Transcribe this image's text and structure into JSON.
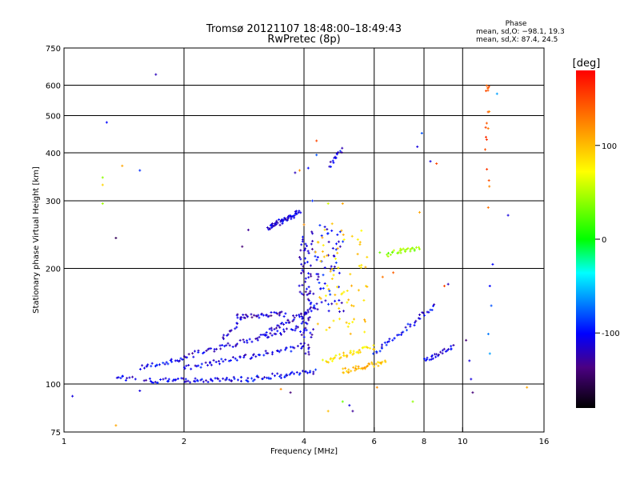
{
  "chart_data": {
    "type": "scatter",
    "title": "Tromsø 20121107 18:48:00–18:49:43",
    "subtitle": "RwPretec (8p)",
    "xlabel": "Frequency [MHz]",
    "ylabel": "Stationary phase Virtual Height [km]",
    "xscale": "log",
    "yscale": "log",
    "xlim": [
      1,
      16
    ],
    "ylim": [
      75,
      750
    ],
    "xticks": [
      1,
      2,
      4,
      6,
      8,
      10,
      16
    ],
    "yticks": [
      75,
      100,
      200,
      300,
      400,
      500,
      600,
      750
    ],
    "grid": true,
    "phase_stats": {
      "heading": "Phase",
      "line_o": "mean, sd,O: −98.1, 19.3",
      "line_x": "mean, sd,X:  87.4, 24.5"
    },
    "colorbar": {
      "label": "[deg]",
      "range": [
        -180,
        180
      ],
      "ticks": [
        100,
        0,
        -100
      ]
    },
    "traces": [
      {
        "x0": 1.6,
        "x1": 2.9,
        "h0": 102,
        "h1": 103,
        "phase": -110,
        "n": 60
      },
      {
        "x0": 2.9,
        "x1": 4.3,
        "h0": 103,
        "h1": 108,
        "phase": -105,
        "n": 40
      },
      {
        "x0": 1.35,
        "x1": 1.5,
        "h0": 103,
        "h1": 104,
        "phase": -110,
        "n": 10
      },
      {
        "x0": 1.55,
        "x1": 2.0,
        "h0": 110,
        "h1": 116,
        "phase": -100,
        "n": 25
      },
      {
        "x0": 2.0,
        "x1": 4.0,
        "h0": 110,
        "h1": 125,
        "phase": -110,
        "n": 60
      },
      {
        "x0": 2.0,
        "x1": 3.9,
        "h0": 118,
        "h1": 140,
        "phase": -115,
        "n": 60
      },
      {
        "x0": 2.7,
        "x1": 3.6,
        "h0": 150,
        "h1": 152,
        "phase": -120,
        "n": 35
      },
      {
        "x0": 2.5,
        "x1": 2.8,
        "h0": 130,
        "h1": 150,
        "phase": -110,
        "n": 15
      },
      {
        "x0": 3.2,
        "x1": 4.3,
        "h0": 135,
        "h1": 160,
        "phase": -115,
        "n": 40
      },
      {
        "x0": 3.9,
        "x1": 4.2,
        "h0": 120,
        "h1": 240,
        "phase": -115,
        "n": 80
      },
      {
        "x0": 3.25,
        "x1": 3.9,
        "h0": 255,
        "h1": 280,
        "phase": -110,
        "n": 60
      },
      {
        "x0": 4.2,
        "x1": 5.0,
        "h0": 150,
        "h1": 260,
        "phase": -105,
        "n": 60
      },
      {
        "x0": 4.5,
        "x1": 6.0,
        "h0": 115,
        "h1": 125,
        "phase": 85,
        "n": 40
      },
      {
        "x0": 4.3,
        "x1": 5.8,
        "h0": 130,
        "h1": 260,
        "phase": 90,
        "n": 70
      },
      {
        "x0": 5.0,
        "x1": 6.4,
        "h0": 108,
        "h1": 114,
        "phase": 100,
        "n": 40
      },
      {
        "x0": 6.5,
        "x1": 7.8,
        "h0": 220,
        "h1": 225,
        "phase": 40,
        "n": 25
      },
      {
        "x0": 6.0,
        "x1": 8.5,
        "h0": 120,
        "h1": 160,
        "phase": -105,
        "n": 40
      },
      {
        "x0": 8.0,
        "x1": 9.5,
        "h0": 115,
        "h1": 125,
        "phase": -110,
        "n": 25
      },
      {
        "x0": 4.6,
        "x1": 5.0,
        "h0": 370,
        "h1": 410,
        "phase": -110,
        "n": 15
      },
      {
        "x0": 11.5,
        "x1": 11.6,
        "h0": 290,
        "h1": 610,
        "phase": 140,
        "n": 18
      }
    ],
    "scatter": [
      {
        "x": 1.05,
        "y": 93,
        "phase": -110
      },
      {
        "x": 1.28,
        "y": 480,
        "phase": -100
      },
      {
        "x": 1.25,
        "y": 345,
        "phase": 40
      },
      {
        "x": 1.25,
        "y": 330,
        "phase": 90
      },
      {
        "x": 1.25,
        "y": 295,
        "phase": 45
      },
      {
        "x": 1.4,
        "y": 370,
        "phase": 110
      },
      {
        "x": 1.35,
        "y": 240,
        "phase": -150
      },
      {
        "x": 1.55,
        "y": 360,
        "phase": -90
      },
      {
        "x": 1.7,
        "y": 640,
        "phase": -120
      },
      {
        "x": 1.35,
        "y": 78,
        "phase": 110
      },
      {
        "x": 1.55,
        "y": 96,
        "phase": -110
      },
      {
        "x": 2.9,
        "y": 252,
        "phase": -130
      },
      {
        "x": 2.8,
        "y": 228,
        "phase": -140
      },
      {
        "x": 3.8,
        "y": 355,
        "phase": -120
      },
      {
        "x": 3.9,
        "y": 360,
        "phase": 120
      },
      {
        "x": 4.3,
        "y": 430,
        "phase": 150
      },
      {
        "x": 4.3,
        "y": 395,
        "phase": -80
      },
      {
        "x": 4.1,
        "y": 365,
        "phase": -100
      },
      {
        "x": 4.2,
        "y": 300,
        "phase": -90
      },
      {
        "x": 4.0,
        "y": 260,
        "phase": 120
      },
      {
        "x": 4.6,
        "y": 295,
        "phase": 60
      },
      {
        "x": 5.0,
        "y": 295,
        "phase": 110
      },
      {
        "x": 4.6,
        "y": 85,
        "phase": 100
      },
      {
        "x": 5.0,
        "y": 90,
        "phase": 30
      },
      {
        "x": 5.2,
        "y": 88,
        "phase": -110
      },
      {
        "x": 5.3,
        "y": 85,
        "phase": -130
      },
      {
        "x": 7.5,
        "y": 90,
        "phase": 40
      },
      {
        "x": 3.5,
        "y": 97,
        "phase": 120
      },
      {
        "x": 3.7,
        "y": 95,
        "phase": -140
      },
      {
        "x": 6.2,
        "y": 220,
        "phase": 30
      },
      {
        "x": 6.5,
        "y": 215,
        "phase": 50
      },
      {
        "x": 6.7,
        "y": 195,
        "phase": 140
      },
      {
        "x": 6.3,
        "y": 190,
        "phase": 130
      },
      {
        "x": 7.7,
        "y": 415,
        "phase": -110
      },
      {
        "x": 7.9,
        "y": 450,
        "phase": -80
      },
      {
        "x": 8.3,
        "y": 380,
        "phase": -110
      },
      {
        "x": 8.6,
        "y": 375,
        "phase": 150
      },
      {
        "x": 7.8,
        "y": 280,
        "phase": 110
      },
      {
        "x": 9.0,
        "y": 180,
        "phase": 150
      },
      {
        "x": 9.2,
        "y": 182,
        "phase": -120
      },
      {
        "x": 10.2,
        "y": 130,
        "phase": -140
      },
      {
        "x": 10.4,
        "y": 115,
        "phase": -110
      },
      {
        "x": 10.5,
        "y": 103,
        "phase": -110
      },
      {
        "x": 10.6,
        "y": 95,
        "phase": -140
      },
      {
        "x": 11.7,
        "y": 180,
        "phase": -100
      },
      {
        "x": 11.9,
        "y": 205,
        "phase": -100
      },
      {
        "x": 11.8,
        "y": 160,
        "phase": -80
      },
      {
        "x": 11.6,
        "y": 135,
        "phase": -70
      },
      {
        "x": 11.7,
        "y": 120,
        "phase": -60
      },
      {
        "x": 12.2,
        "y": 570,
        "phase": -60
      },
      {
        "x": 13.0,
        "y": 275,
        "phase": -110
      },
      {
        "x": 14.5,
        "y": 98,
        "phase": 110
      },
      {
        "x": 6.9,
        "y": 220,
        "phase": 45
      },
      {
        "x": 7.1,
        "y": 225,
        "phase": 50
      },
      {
        "x": 6.1,
        "y": 98,
        "phase": 120
      }
    ]
  }
}
